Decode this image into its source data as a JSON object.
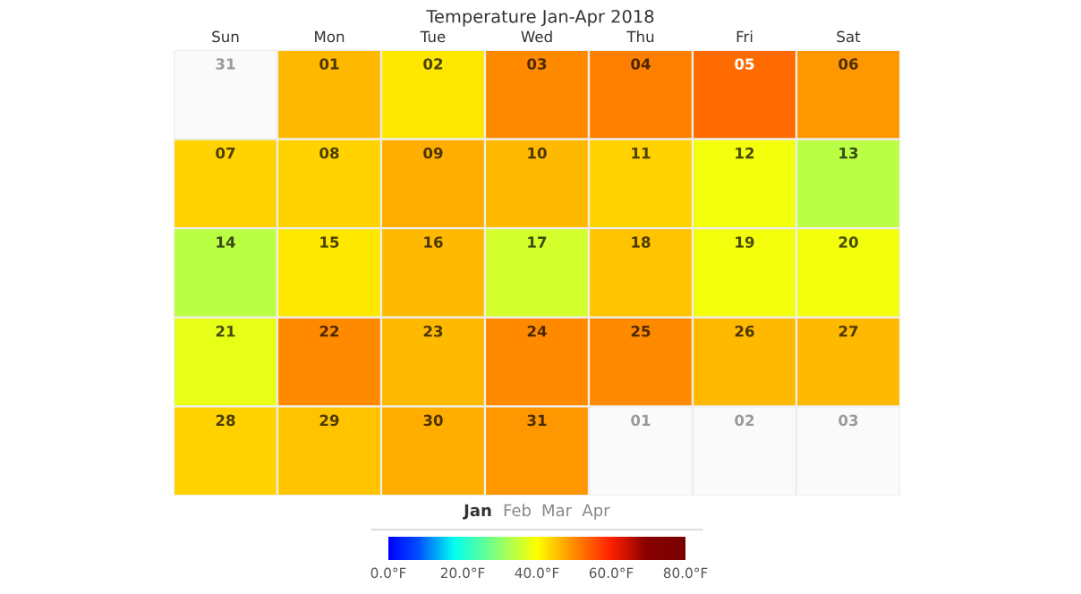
{
  "chart_data": {
    "type": "heatmap",
    "title": "Temperature Jan-Apr 2018",
    "categories": [
      "Sun",
      "Mon",
      "Tue",
      "Wed",
      "Thu",
      "Fri",
      "Sat"
    ],
    "y_categories": [
      null,
      null,
      null,
      null,
      null
    ],
    "cells": [
      [
        null,
        46,
        42,
        50,
        51,
        53,
        49
      ],
      [
        44,
        44,
        47,
        46,
        44,
        39,
        34
      ],
      [
        34,
        42,
        46,
        36,
        45,
        39,
        39
      ],
      [
        38,
        50,
        46,
        50,
        50,
        46,
        46
      ],
      [
        44,
        45,
        47,
        49,
        null,
        null,
        null
      ]
    ],
    "clim": [
      0,
      80
    ],
    "cticks": [
      {
        "value": 0,
        "label": "0.0°F"
      },
      {
        "value": 20,
        "label": "20.0°F"
      },
      {
        "value": 40,
        "label": "40.0°F"
      },
      {
        "value": 60,
        "label": "60.0°F"
      },
      {
        "value": 80,
        "label": "80.0°F"
      }
    ],
    "annotations": [
      "31",
      "01",
      "02",
      "03",
      "04",
      "05",
      "06",
      "07",
      "08",
      "09",
      "10",
      "11",
      "12",
      "13",
      "14",
      "15",
      "16",
      "17",
      "18",
      "19",
      "20",
      "21",
      "22",
      "23",
      "24",
      "25",
      "26",
      "27",
      "28",
      "29",
      "30",
      "31",
      "01",
      "02",
      "03",
      "Jan",
      "Feb",
      "Mar",
      "Apr"
    ]
  }
}
